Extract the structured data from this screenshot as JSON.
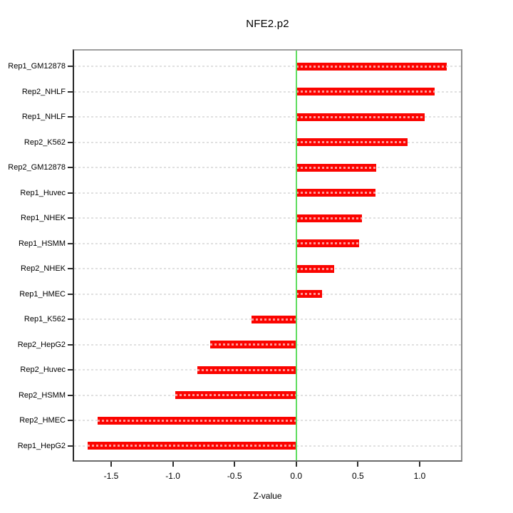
{
  "chart_data": {
    "type": "bar",
    "orientation": "horizontal",
    "title": "NFE2.p2",
    "xlabel": "Z-value",
    "ylabel": "",
    "categories": [
      "Rep1_GM12878",
      "Rep2_NHLF",
      "Rep1_NHLF",
      "Rep2_K562",
      "Rep2_GM12878",
      "Rep1_Huvec",
      "Rep1_NHEK",
      "Rep1_HSMM",
      "Rep2_NHEK",
      "Rep1_HMEC",
      "Rep1_K562",
      "Rep2_HepG2",
      "Rep2_Huvec",
      "Rep2_HSMM",
      "Rep2_HMEC",
      "Rep1_HepG2"
    ],
    "values": [
      1.22,
      1.12,
      1.04,
      0.9,
      0.65,
      0.64,
      0.53,
      0.51,
      0.31,
      0.21,
      -0.36,
      -0.7,
      -0.8,
      -0.98,
      -1.61,
      -1.69
    ],
    "xlim": [
      -1.8,
      1.335
    ],
    "xticks": [
      -1.5,
      -1.0,
      -0.5,
      0.0,
      0.5,
      1.0
    ],
    "xtick_labels": [
      "-1.5",
      "-1.0",
      "-0.5",
      "0.0",
      "0.5",
      "1.0"
    ],
    "grid": "dotted-horizontal-per-row",
    "legend": "none",
    "colors": {
      "bar": "#fb0400",
      "zero_line": "#5fdd5f",
      "gridline": "#e0e0e0",
      "frame": "#8f8f8f",
      "tick": "#2e2e2e",
      "text": "#000000"
    }
  }
}
